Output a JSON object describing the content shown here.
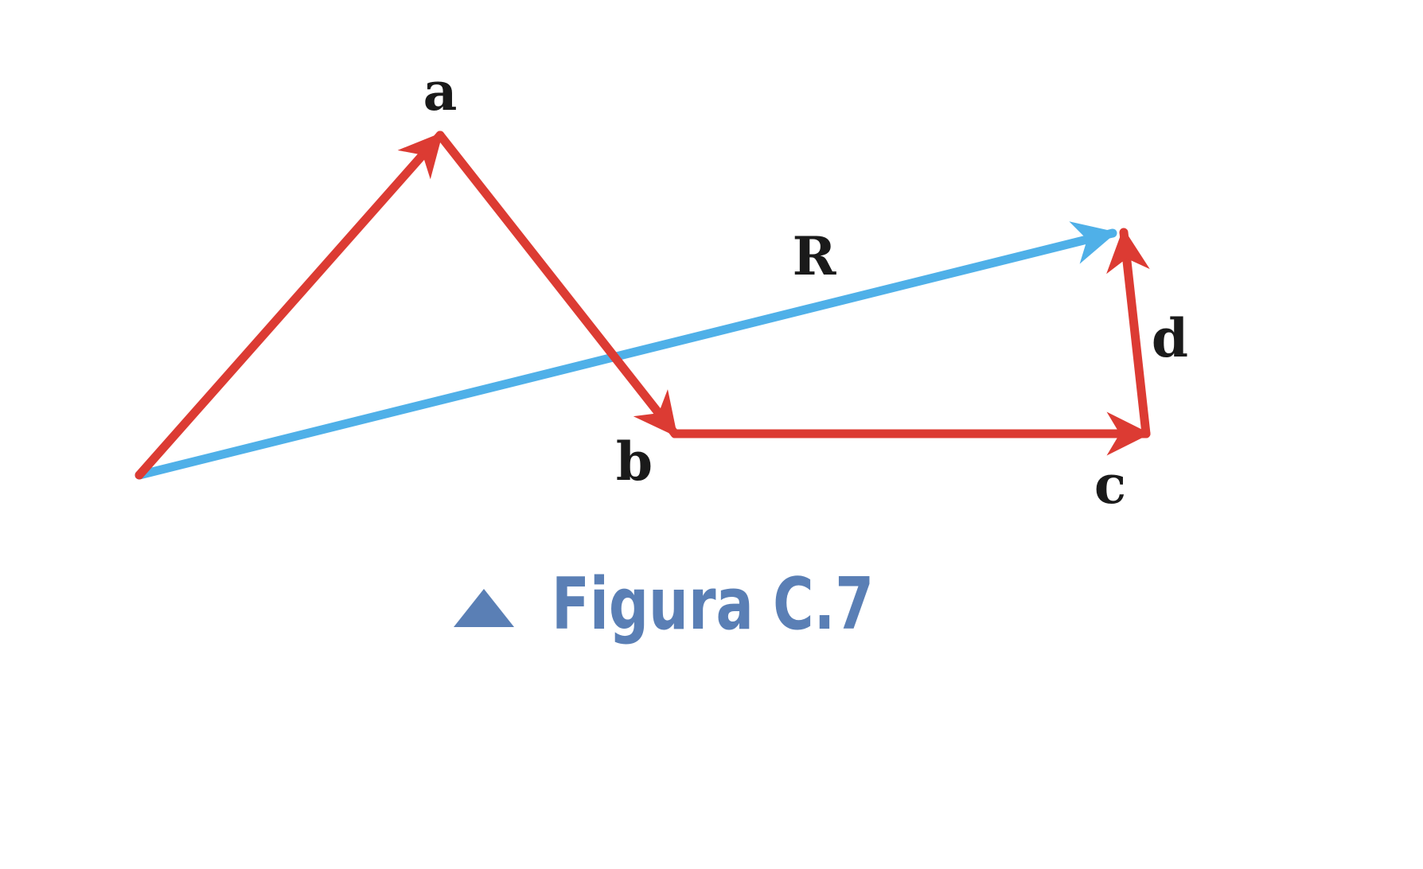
{
  "colors": {
    "component_vector": "#dc3b33",
    "resultant_vector": "#4fb0e8",
    "caption": "#5a7fb5",
    "label": "#1a1a1a"
  },
  "labels": {
    "a": "a",
    "b": "b",
    "c": "c",
    "d": "d",
    "R": "R"
  },
  "caption": {
    "marker_icon": "triangle-up-icon",
    "text": "Figura C.7"
  }
}
